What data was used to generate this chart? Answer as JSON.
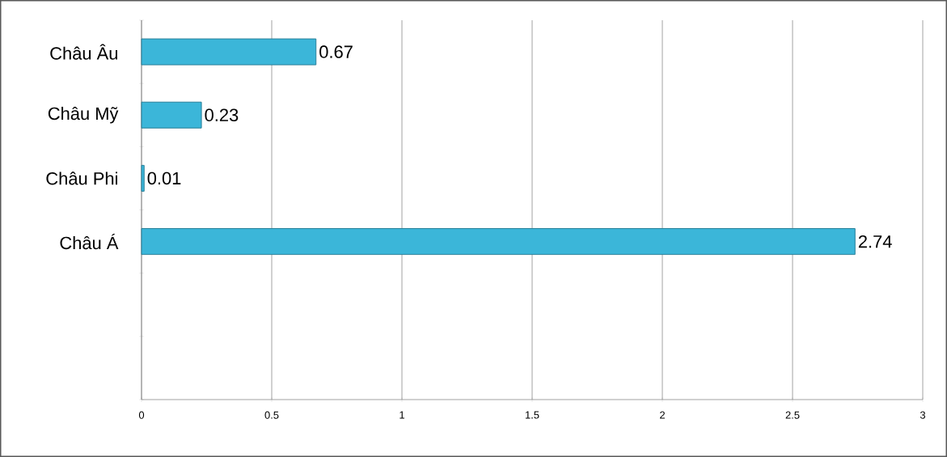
{
  "chart_data": {
    "type": "bar",
    "orientation": "horizontal",
    "categories": [
      "Châu Âu",
      "Châu Mỹ",
      "Châu Phi",
      "Châu Á",
      null,
      null
    ],
    "values": [
      0.67,
      0.23,
      0.01,
      2.74,
      null,
      null
    ],
    "color": "#3bb6d9",
    "data_labels": true,
    "xlim": [
      0,
      3
    ],
    "xticks": [
      0,
      0.5,
      1,
      1.5,
      2,
      2.5,
      3
    ],
    "grid": "x"
  }
}
